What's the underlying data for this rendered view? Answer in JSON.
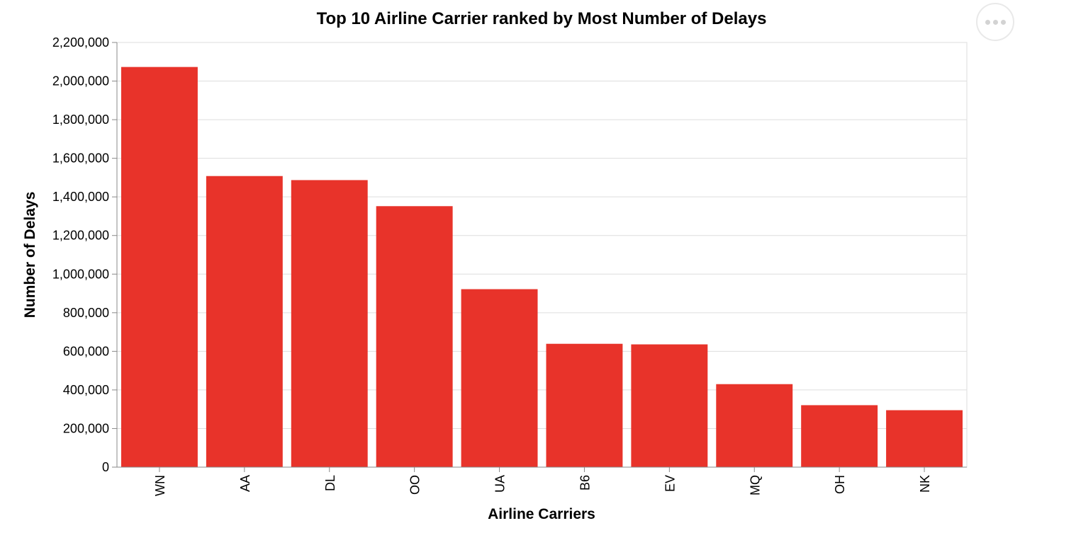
{
  "chart_data": {
    "type": "bar",
    "title": "Top 10 Airline Carrier ranked by Most Number of Delays",
    "xlabel": "Airline Carriers",
    "ylabel": "Number of Delays",
    "categories": [
      "WN",
      "AA",
      "DL",
      "OO",
      "UA",
      "B6",
      "EV",
      "MQ",
      "OH",
      "NK"
    ],
    "values": [
      2073000,
      1508000,
      1487000,
      1352000,
      922000,
      639000,
      636000,
      430000,
      321000,
      295000
    ],
    "ylim": [
      0,
      2200000
    ],
    "yticks": [
      "0",
      "200,000",
      "400,000",
      "600,000",
      "800,000",
      "1,000,000",
      "1,200,000",
      "1,400,000",
      "1,600,000",
      "1,800,000",
      "2,000,000",
      "2,200,000"
    ],
    "grid": true,
    "bar_color": "#e8332a"
  },
  "actions_menu": {
    "icon": "more-horizontal-icon"
  }
}
